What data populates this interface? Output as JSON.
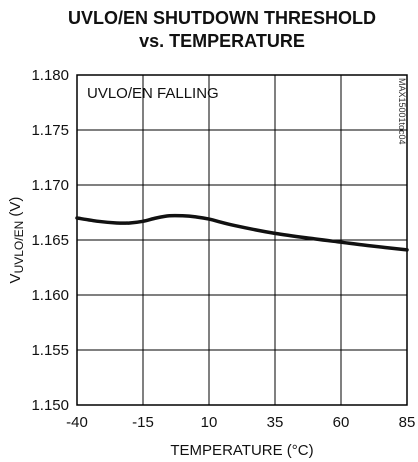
{
  "chart_data": {
    "type": "line",
    "title_line1": "UVLO/EN SHUTDOWN THRESHOLD",
    "title_line2": "vs. TEMPERATURE",
    "xlabel": "TEMPERATURE (°C)",
    "ylabel_main": "V",
    "ylabel_sub": "UVLO/EN",
    "ylabel_unit": " (V)",
    "annotation": "UVLO/EN FALLING",
    "watermark": "MAX15001toc04",
    "xlim": [
      -40,
      85
    ],
    "ylim": [
      1.15,
      1.18
    ],
    "x_ticks": [
      -40,
      -15,
      10,
      35,
      60,
      85
    ],
    "x_tick_labels": [
      "-40",
      "-15",
      "10",
      "35",
      "60",
      "85"
    ],
    "y_ticks": [
      1.15,
      1.155,
      1.16,
      1.165,
      1.17,
      1.175,
      1.18
    ],
    "y_tick_labels": [
      "1.150",
      "1.155",
      "1.160",
      "1.165",
      "1.170",
      "1.175",
      "1.180"
    ],
    "grid": true,
    "series": [
      {
        "color": "#111111",
        "x": [
          -40,
          -32,
          -25,
          -20,
          -15,
          -10,
          -5,
          0,
          5,
          10,
          20,
          35,
          50,
          60,
          70,
          85
        ],
        "y": [
          1.167,
          1.1667,
          1.16655,
          1.16655,
          1.1667,
          1.167,
          1.1672,
          1.1672,
          1.1671,
          1.1669,
          1.1663,
          1.1656,
          1.1651,
          1.1648,
          1.1645,
          1.1641
        ]
      }
    ]
  }
}
